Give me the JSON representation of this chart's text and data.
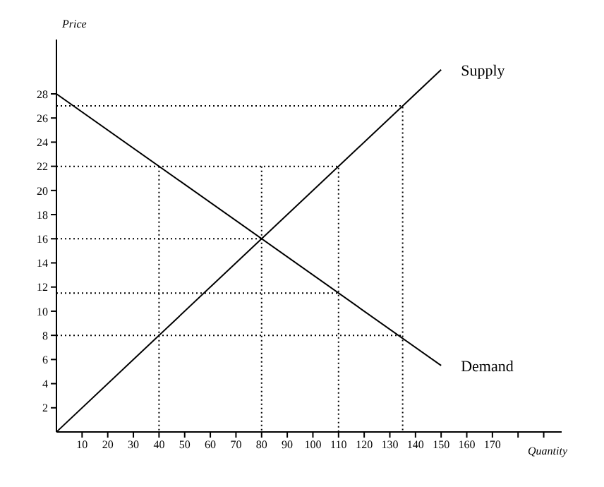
{
  "chart_data": {
    "type": "line",
    "xlabel": "Quantity",
    "ylabel": "Price",
    "xlim": [
      0,
      197
    ],
    "ylim": [
      0,
      32.5
    ],
    "xticks": [
      10,
      20,
      30,
      40,
      50,
      60,
      70,
      80,
      90,
      100,
      110,
      120,
      130,
      140,
      150,
      160,
      170,
      {
        "value": 180,
        "label": null
      },
      {
        "value": 190,
        "label": null
      }
    ],
    "yticks": [
      2,
      4,
      6,
      8,
      10,
      12,
      14,
      16,
      18,
      20,
      22,
      24,
      26,
      28
    ],
    "grid": false,
    "legend": false,
    "marker": "none",
    "series": [
      {
        "name": "Supply",
        "color": "#000000",
        "x": [
          0,
          150
        ],
        "values": [
          0,
          30
        ],
        "line_style": "solid"
      },
      {
        "name": "Demand",
        "color": "#000000",
        "x": [
          0,
          150
        ],
        "values": [
          28,
          5.5
        ],
        "line_style": "solid"
      },
      {
        "color": "#000000",
        "x": [
          0,
          135,
          135
        ],
        "values": [
          27,
          27,
          0
        ],
        "line_style": "dotted"
      },
      {
        "color": "#000000",
        "x": [
          0,
          110,
          110
        ],
        "values": [
          22,
          22,
          0
        ],
        "line_style": "dotted"
      },
      {
        "color": "#000000",
        "x": [
          40,
          40
        ],
        "values": [
          22,
          0
        ],
        "line_style": "dotted"
      },
      {
        "color": "#000000",
        "x": [
          80,
          80
        ],
        "values": [
          22,
          0
        ],
        "line_style": "dotted"
      },
      {
        "color": "#000000",
        "x": [
          0,
          80
        ],
        "values": [
          16,
          16
        ],
        "line_style": "dotted"
      },
      {
        "color": "#000000",
        "x": [
          0,
          110
        ],
        "values": [
          11.5,
          11.5
        ],
        "line_style": "dotted"
      },
      {
        "color": "#000000",
        "x": [
          0,
          135
        ],
        "values": [
          8,
          8
        ],
        "line_style": "dotted"
      }
    ]
  }
}
